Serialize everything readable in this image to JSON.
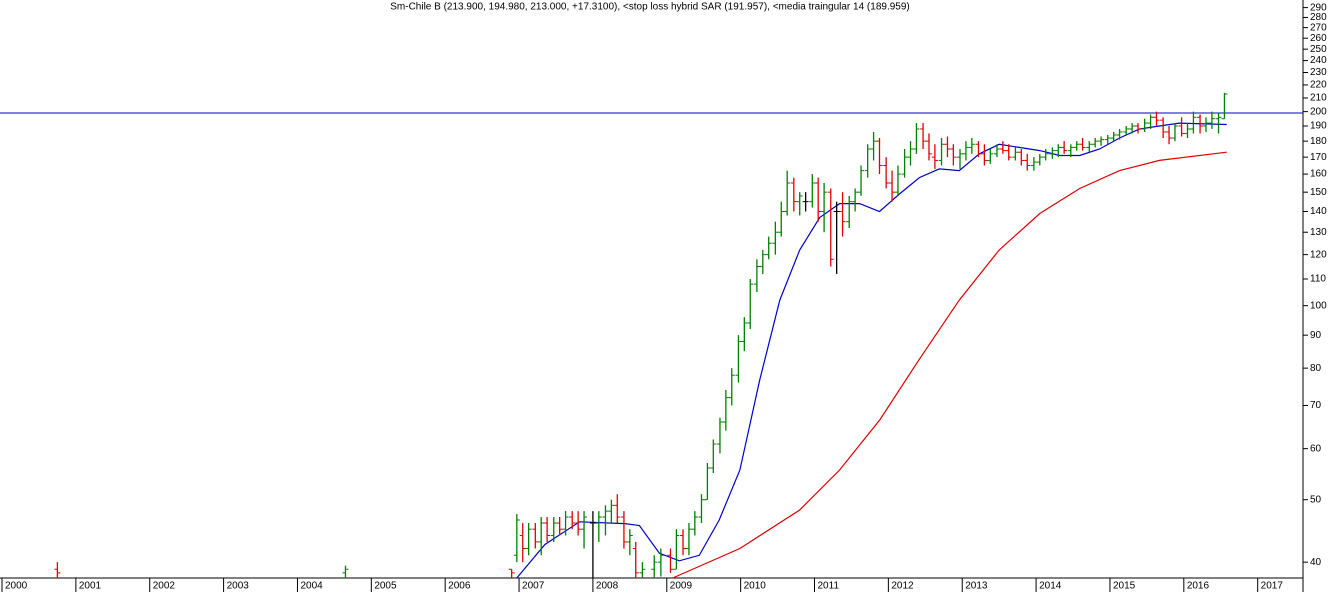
{
  "chart_data": {
    "type": "ohlc",
    "title": "Sm-Chile B (213.900, 194.980, 213.000, +17.3100), <stop loss hybrid SAR (191.957), <media traingular 14 (189.959)",
    "log_scale": true,
    "xlim": [
      2000,
      2017.6
    ],
    "xticks": [
      2000,
      2001,
      2002,
      2003,
      2004,
      2005,
      2006,
      2007,
      2008,
      2009,
      2010,
      2011,
      2012,
      2013,
      2014,
      2015,
      2016,
      2017
    ],
    "ylim": [
      37.8,
      298
    ],
    "yticks": [
      40,
      50,
      60,
      70,
      80,
      90,
      100,
      110,
      120,
      130,
      140,
      150,
      160,
      170,
      180,
      190,
      200,
      210,
      220,
      230,
      240,
      250,
      260,
      270,
      280,
      290
    ],
    "hline": {
      "value": 199,
      "color": "#0000cc"
    },
    "up_color": "#008000",
    "down_color": "#e00000",
    "flat_color": "#000000",
    "x": [
      2000.75,
      2004.65,
      2006.9,
      2006.97,
      2007.05,
      2007.13,
      2007.22,
      2007.3,
      2007.38,
      2007.47,
      2007.55,
      2007.63,
      2007.72,
      2007.8,
      2007.88,
      2008.0,
      2008.08,
      2008.17,
      2008.25,
      2008.33,
      2008.42,
      2008.5,
      2008.58,
      2008.67,
      2008.83,
      2008.92,
      2009.05,
      2009.13,
      2009.22,
      2009.3,
      2009.38,
      2009.47,
      2009.55,
      2009.63,
      2009.72,
      2009.8,
      2009.88,
      2009.97,
      2010.05,
      2010.13,
      2010.22,
      2010.3,
      2010.38,
      2010.47,
      2010.55,
      2010.63,
      2010.72,
      2010.8,
      2010.88,
      2010.97,
      2011.05,
      2011.13,
      2011.22,
      2011.3,
      2011.38,
      2011.47,
      2011.55,
      2011.63,
      2011.72,
      2011.8,
      2011.88,
      2011.97,
      2012.05,
      2012.13,
      2012.22,
      2012.3,
      2012.38,
      2012.47,
      2012.55,
      2012.63,
      2012.72,
      2012.8,
      2012.88,
      2012.97,
      2013.05,
      2013.13,
      2013.22,
      2013.3,
      2013.38,
      2013.47,
      2013.55,
      2013.63,
      2013.72,
      2013.8,
      2013.88,
      2013.97,
      2014.05,
      2014.13,
      2014.22,
      2014.3,
      2014.38,
      2014.47,
      2014.55,
      2014.63,
      2014.72,
      2014.8,
      2014.88,
      2014.97,
      2015.05,
      2015.13,
      2015.22,
      2015.3,
      2015.38,
      2015.47,
      2015.55,
      2015.63,
      2015.72,
      2015.8,
      2015.88,
      2015.97,
      2016.05,
      2016.13,
      2016.22,
      2016.3,
      2016.38,
      2016.47,
      2016.55
    ],
    "open": [
      39,
      38.5,
      39,
      41,
      44,
      42,
      45,
      43,
      46,
      44,
      46,
      45,
      47,
      46,
      45,
      46,
      46,
      47,
      48,
      49,
      47,
      43,
      42,
      38.5,
      39,
      40,
      41,
      39,
      44,
      42,
      45,
      47,
      50,
      56,
      61,
      66,
      72,
      78,
      88,
      94,
      108,
      115,
      120,
      125,
      130,
      140,
      155,
      145,
      145,
      145,
      155,
      140,
      150,
      140,
      140,
      135,
      145,
      150,
      162,
      175,
      180,
      165,
      155,
      150,
      160,
      170,
      175,
      188,
      180,
      170,
      168,
      178,
      175,
      170,
      172,
      176,
      178,
      172,
      168,
      172,
      175,
      174,
      170,
      173,
      168,
      165,
      167,
      170,
      172,
      174,
      176,
      174,
      176,
      178,
      176,
      178,
      180,
      181,
      182,
      184,
      186,
      188,
      190,
      188,
      192,
      196,
      194,
      186,
      182,
      190,
      185,
      188,
      196,
      190,
      192,
      195,
      194.98
    ],
    "high": [
      40,
      39.5,
      39,
      47.5,
      46,
      46,
      46,
      47,
      47,
      47,
      47,
      48,
      48,
      48,
      48,
      48,
      48,
      49,
      50,
      51,
      48,
      45,
      43,
      40,
      41,
      42,
      42,
      45,
      45,
      46,
      48,
      51,
      57,
      62,
      67,
      74,
      80,
      90,
      96,
      110,
      118,
      122,
      128,
      135,
      145,
      162,
      158,
      150,
      150,
      160,
      158,
      155,
      152,
      145,
      150,
      148,
      152,
      165,
      178,
      186,
      182,
      170,
      162,
      165,
      175,
      180,
      192,
      192,
      185,
      178,
      182,
      183,
      178,
      175,
      180,
      182,
      180,
      178,
      175,
      178,
      180,
      178,
      176,
      175,
      172,
      170,
      172,
      175,
      176,
      178,
      180,
      178,
      180,
      182,
      180,
      182,
      183,
      184,
      186,
      188,
      190,
      192,
      192,
      195,
      198,
      200,
      196,
      190,
      192,
      196,
      192,
      200,
      198,
      196,
      200,
      199,
      213.9
    ],
    "low": [
      37.8,
      37.9,
      37.8,
      40,
      40,
      41,
      42,
      41,
      43,
      43,
      44,
      44,
      45,
      44,
      42,
      37.8,
      43,
      44,
      46,
      46,
      42,
      41,
      37.8,
      37.8,
      37.8,
      38,
      38.5,
      39,
      41,
      41,
      44,
      46,
      50,
      55,
      59,
      64,
      70,
      76,
      85,
      92,
      105,
      112,
      118,
      120,
      128,
      138,
      140,
      138,
      140,
      142,
      135,
      130,
      115,
      112,
      128,
      132,
      140,
      148,
      158,
      168,
      160,
      152,
      145,
      148,
      158,
      165,
      172,
      175,
      168,
      163,
      165,
      170,
      165,
      163,
      168,
      172,
      170,
      165,
      166,
      170,
      172,
      168,
      168,
      165,
      162,
      162,
      165,
      168,
      169,
      170,
      172,
      170,
      174,
      174,
      173,
      176,
      177,
      178,
      180,
      181,
      184,
      185,
      185,
      186,
      188,
      190,
      182,
      178,
      180,
      183,
      182,
      185,
      185,
      186,
      188,
      185,
      194.98
    ],
    "close": [
      38.5,
      39,
      38.5,
      46.5,
      42,
      45,
      43,
      46,
      44,
      46,
      45,
      47,
      46,
      45,
      47,
      46,
      47,
      48,
      49,
      47,
      43,
      44,
      38.5,
      39,
      40,
      41,
      39,
      44,
      42,
      45,
      47,
      50,
      56,
      61,
      66,
      72,
      78,
      88,
      94,
      108,
      115,
      120,
      125,
      130,
      140,
      155,
      145,
      148,
      145,
      155,
      140,
      150,
      118,
      140,
      135,
      145,
      150,
      162,
      175,
      180,
      165,
      155,
      150,
      160,
      170,
      175,
      188,
      180,
      172,
      168,
      178,
      175,
      170,
      172,
      176,
      178,
      172,
      168,
      172,
      175,
      174,
      170,
      173,
      168,
      165,
      167,
      170,
      172,
      174,
      176,
      174,
      176,
      178,
      176,
      178,
      180,
      181,
      182,
      184,
      186,
      188,
      190,
      188,
      192,
      196,
      194,
      186,
      182,
      190,
      185,
      188,
      196,
      190,
      192,
      195,
      196,
      213
    ],
    "series": [
      {
        "name": "media traingular 14",
        "color": "#0000cc",
        "x": [
          2006.97,
          2007.35,
          2007.82,
          2008.43,
          2008.63,
          2008.9,
          2009.17,
          2009.44,
          2009.71,
          2009.99,
          2010.26,
          2010.53,
          2010.8,
          2011.07,
          2011.34,
          2011.61,
          2011.88,
          2012.15,
          2012.42,
          2012.69,
          2012.96,
          2013.23,
          2013.5,
          2013.77,
          2014.05,
          2014.32,
          2014.59,
          2014.86,
          2015.13,
          2015.4,
          2015.67,
          2015.94,
          2016.58
        ],
        "values": [
          37.8,
          42.6,
          46.2,
          45.9,
          45.6,
          41.3,
          40.2,
          41.0,
          46.5,
          55.6,
          76.8,
          102,
          122,
          137,
          144,
          144,
          140,
          149,
          158,
          163,
          162,
          172,
          178,
          176,
          174,
          171,
          171,
          175,
          182,
          188,
          190,
          192,
          191
        ]
      },
      {
        "name": "media",
        "color": "#dd0000",
        "x": [
          2009.08,
          2009.99,
          2010.8,
          2011.34,
          2011.88,
          2012.42,
          2012.96,
          2013.5,
          2014.05,
          2014.59,
          2015.13,
          2015.67,
          2016.58
        ],
        "values": [
          37.8,
          42.0,
          48.2,
          55.6,
          66.4,
          82.6,
          102,
          122,
          139,
          152,
          162,
          168,
          173
        ]
      }
    ]
  }
}
